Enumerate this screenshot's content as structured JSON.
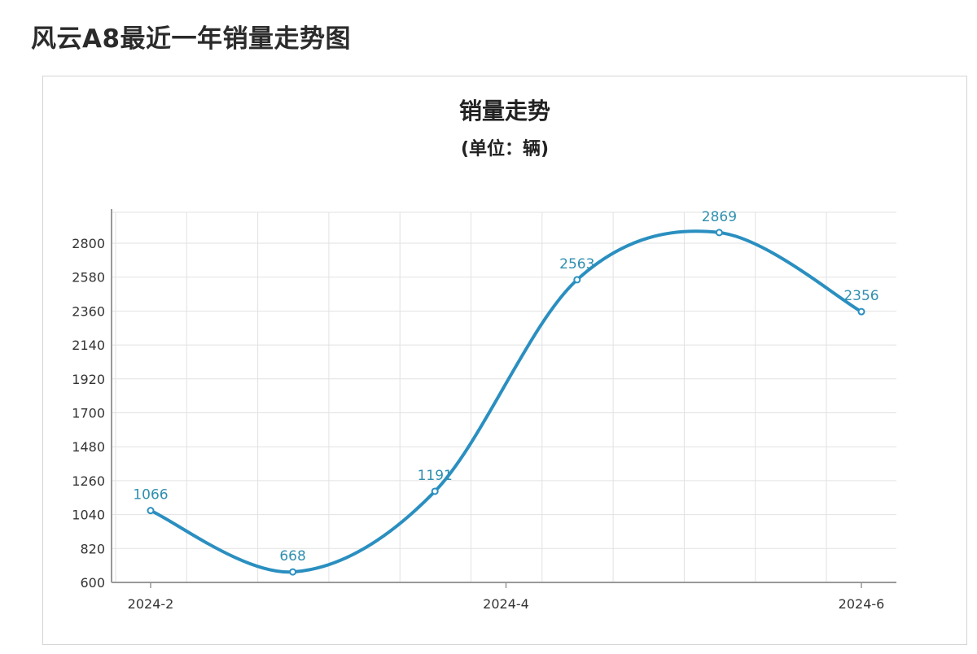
{
  "page": {
    "title": "风云A8最近一年销量走势图"
  },
  "chart_data": {
    "type": "line",
    "title": "销量走势",
    "subtitle": "(单位：辆)",
    "xlabel": "",
    "ylabel": "",
    "x_tick_labels": [
      "2024-2",
      "2024-4",
      "2024-6"
    ],
    "x_tick_index": [
      0,
      2.5,
      5
    ],
    "points": [
      {
        "index": 0,
        "value": 1066
      },
      {
        "index": 1,
        "value": 668
      },
      {
        "index": 2,
        "value": 1191
      },
      {
        "index": 3,
        "value": 2563
      },
      {
        "index": 4,
        "value": 2869
      },
      {
        "index": 5,
        "value": 2356
      }
    ],
    "ylim": [
      600,
      2800
    ],
    "y_ticks": [
      600,
      820,
      1040,
      1260,
      1480,
      1700,
      1920,
      2140,
      2360,
      2580,
      2800
    ],
    "grid": true,
    "colors": {
      "line": "#2a8fc0",
      "label": "#2f8fb0",
      "grid": "#e2e2e2",
      "axis": "#999999"
    }
  }
}
